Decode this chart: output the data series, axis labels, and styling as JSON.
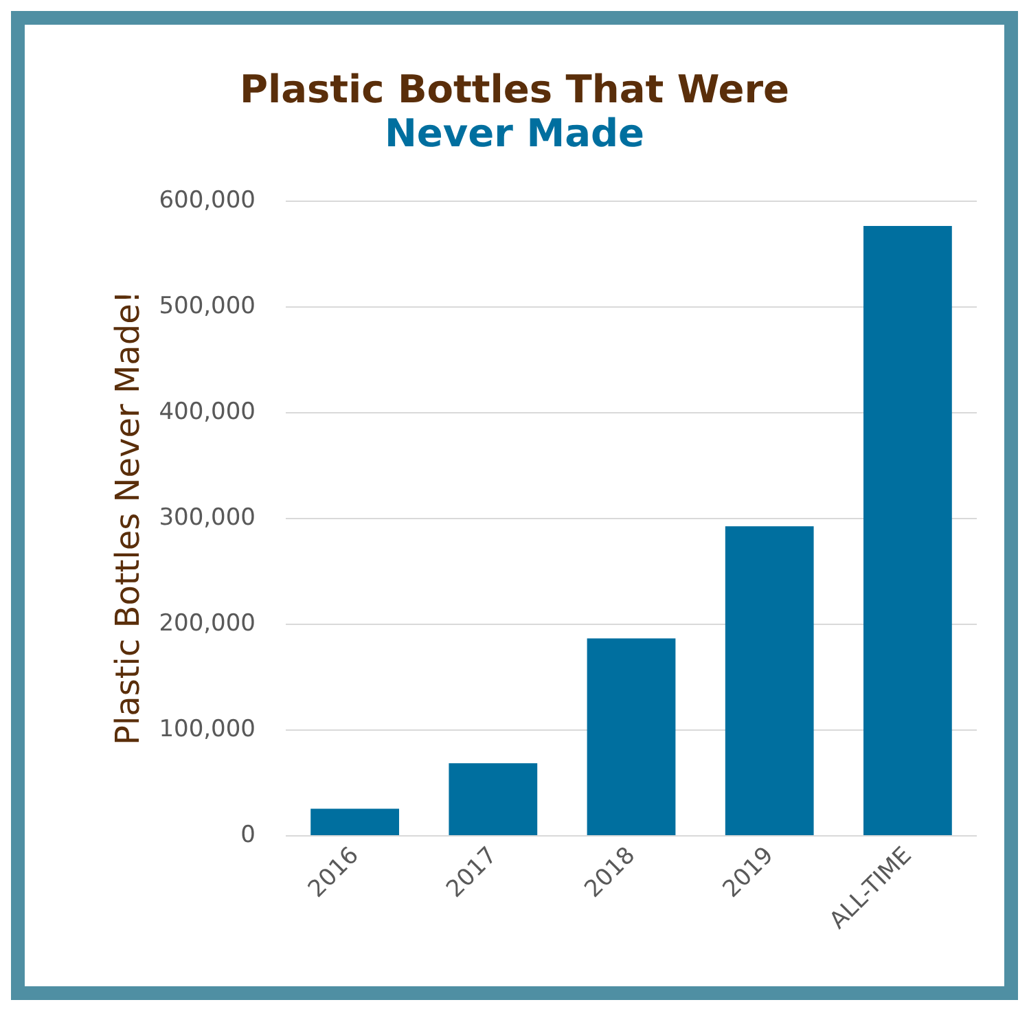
{
  "chart_data": {
    "type": "bar",
    "title": "Plastic Bottles That Were",
    "subtitle": "Never Made",
    "ylabel": "Plastic Bottles Never Made!",
    "categories": [
      "2016",
      "2017",
      "2018",
      "2019",
      "ALL-TIME"
    ],
    "values": [
      25000,
      68000,
      186000,
      292000,
      576000
    ],
    "color": "#006f9f",
    "ylim": [
      0,
      600000
    ],
    "yticks": [
      0,
      {
        "value": 100000,
        "label": "100,000"
      },
      {
        "value": 200000,
        "label": "200,000"
      },
      {
        "value": 300000,
        "label": "300,000"
      },
      {
        "value": 400000,
        "label": "400,000"
      },
      {
        "value": 500000,
        "label": "500,000"
      },
      {
        "value": 600000,
        "label": "600,000"
      }
    ],
    "grid": "y"
  }
}
